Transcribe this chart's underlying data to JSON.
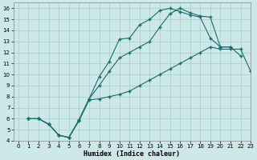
{
  "xlabel": "Humidex (Indice chaleur)",
  "bg_color": "#cde8e8",
  "grid_color": "#aacccc",
  "line_color": "#1a6b6b",
  "xlim": [
    -0.5,
    23
  ],
  "ylim": [
    4,
    16.5
  ],
  "xticks": [
    0,
    1,
    2,
    3,
    4,
    5,
    6,
    7,
    8,
    9,
    10,
    11,
    12,
    13,
    14,
    15,
    16,
    17,
    18,
    19,
    20,
    21,
    22,
    23
  ],
  "yticks": [
    4,
    5,
    6,
    7,
    8,
    9,
    10,
    11,
    12,
    13,
    14,
    15,
    16
  ],
  "curve_upper_x": [
    1,
    2,
    3,
    4,
    5,
    6,
    7,
    8,
    9,
    10,
    11,
    12,
    13,
    14,
    15,
    16,
    17,
    18,
    19,
    20,
    21
  ],
  "curve_upper_y": [
    6.0,
    6.0,
    5.5,
    4.5,
    4.3,
    5.9,
    7.8,
    9.8,
    11.2,
    13.2,
    13.3,
    14.5,
    15.0,
    15.8,
    16.0,
    15.7,
    15.4,
    15.2,
    13.3,
    12.5,
    12.5
  ],
  "curve_mid_x": [
    1,
    2,
    3,
    4,
    5,
    6,
    7,
    8,
    9,
    10,
    11,
    12,
    13,
    14,
    15,
    16,
    17,
    18,
    19,
    20,
    21,
    22
  ],
  "curve_mid_y": [
    6.0,
    6.0,
    5.5,
    4.5,
    4.3,
    5.9,
    7.8,
    9.0,
    10.3,
    11.5,
    12.0,
    12.5,
    13.0,
    14.3,
    15.5,
    16.0,
    15.6,
    15.3,
    15.2,
    12.5,
    12.5,
    11.7
  ],
  "curve_low_x": [
    1,
    2,
    3,
    4,
    5,
    6,
    7,
    8,
    9,
    10,
    11,
    12,
    13,
    14,
    15,
    16,
    17,
    18,
    19,
    20,
    21,
    22,
    23
  ],
  "curve_low_y": [
    6.0,
    6.0,
    5.5,
    4.5,
    4.3,
    5.8,
    7.7,
    7.8,
    8.0,
    8.2,
    8.5,
    9.0,
    9.5,
    10.0,
    10.5,
    11.0,
    11.5,
    12.0,
    12.5,
    12.3,
    12.3,
    12.3,
    10.3
  ]
}
